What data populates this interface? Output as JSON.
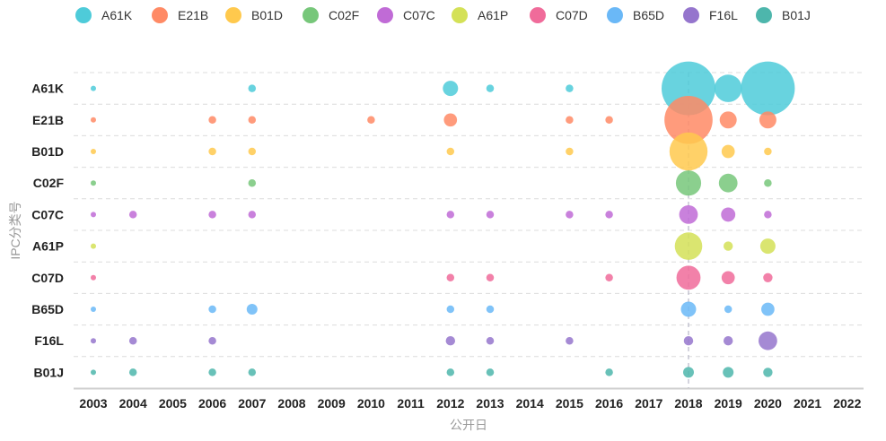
{
  "chart_data": {
    "type": "scatter",
    "subtype": "bubble",
    "title": "",
    "xlabel": "公开日",
    "ylabel": "IPC分类号",
    "categories": [
      "A61K",
      "E21B",
      "B01D",
      "C02F",
      "C07C",
      "A61P",
      "C07D",
      "B65D",
      "F16L",
      "B01J"
    ],
    "x": [
      "2003",
      "2004",
      "2005",
      "2006",
      "2007",
      "2008",
      "2009",
      "2010",
      "2011",
      "2012",
      "2013",
      "2014",
      "2015",
      "2016",
      "2017",
      "2018",
      "2019",
      "2020",
      "2021",
      "2022"
    ],
    "colors": [
      "#4ecbd9",
      "#ff8a65",
      "#ffc94d",
      "#77c77a",
      "#c06bd6",
      "#d4e157",
      "#f06b9a",
      "#6ab8f7",
      "#9575cd",
      "#4db6ac"
    ],
    "legend_position": "top",
    "highlight_x": "2018",
    "grid": true,
    "series": [
      {
        "name": "A61K",
        "values": [
          1,
          0,
          0,
          0,
          2,
          0,
          0,
          0,
          0,
          8,
          2,
          0,
          2,
          0,
          0,
          100,
          26,
          100,
          0,
          0
        ]
      },
      {
        "name": "E21B",
        "values": [
          1,
          0,
          0,
          2,
          2,
          0,
          0,
          2,
          0,
          6,
          0,
          0,
          2,
          2,
          0,
          80,
          10,
          10,
          0,
          0
        ]
      },
      {
        "name": "B01D",
        "values": [
          1,
          0,
          0,
          2,
          2,
          0,
          0,
          0,
          0,
          2,
          0,
          0,
          2,
          0,
          0,
          50,
          6,
          2,
          0,
          0
        ]
      },
      {
        "name": "C02F",
        "values": [
          1,
          0,
          0,
          0,
          2,
          0,
          0,
          0,
          0,
          0,
          0,
          0,
          0,
          0,
          0,
          22,
          12,
          2,
          0,
          0
        ]
      },
      {
        "name": "C07C",
        "values": [
          1,
          2,
          0,
          2,
          2,
          0,
          0,
          0,
          0,
          2,
          2,
          0,
          2,
          2,
          0,
          12,
          7,
          2,
          0,
          0
        ]
      },
      {
        "name": "A61P",
        "values": [
          1,
          0,
          0,
          0,
          0,
          0,
          0,
          0,
          0,
          0,
          0,
          0,
          0,
          0,
          0,
          26,
          3,
          8,
          0,
          0
        ]
      },
      {
        "name": "C07D",
        "values": [
          1,
          0,
          0,
          0,
          0,
          0,
          0,
          0,
          0,
          2,
          2,
          0,
          0,
          2,
          0,
          20,
          6,
          3,
          0,
          0
        ]
      },
      {
        "name": "B65D",
        "values": [
          1,
          0,
          0,
          2,
          4,
          0,
          0,
          0,
          0,
          2,
          2,
          0,
          0,
          0,
          0,
          8,
          2,
          6,
          0,
          0
        ]
      },
      {
        "name": "F16L",
        "values": [
          1,
          2,
          0,
          2,
          0,
          0,
          0,
          0,
          0,
          3,
          2,
          0,
          2,
          0,
          0,
          3,
          3,
          12,
          0,
          0
        ]
      },
      {
        "name": "B01J",
        "values": [
          1,
          2,
          0,
          2,
          2,
          0,
          0,
          0,
          0,
          2,
          2,
          0,
          0,
          2,
          0,
          4,
          4,
          3,
          0,
          0
        ]
      }
    ]
  }
}
